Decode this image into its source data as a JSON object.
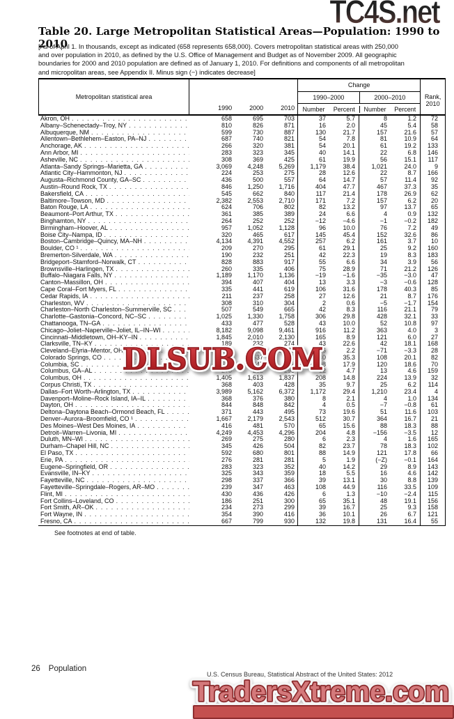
{
  "watermarks": {
    "top": "TC4S.net",
    "middle": "DLSUB.COM",
    "bottom": "TradersXtreme.com"
  },
  "title": "Table 20. Large Metropolitan Statistical Areas—Population: 1990 to 2010",
  "subtitle_lines": [
    "[As of April 1. In thousands, except as indicated (658 represents 658,000). Covers metropolitan statistical areas with 250,000",
    "and over population in 2010, as defined by the U.S. Office of Management and Budget as of November 2009. All geographic",
    "boundaries for 2000 and 2010 population are defined as of January 1, 2010. For definitions and components of all metropolitan",
    "and micropolitan areas, see Appendix II. Minus sign (−) indicates decrease]"
  ],
  "table": {
    "col_area": "Metropolitan statistical area",
    "col_years": [
      "1990",
      "2000",
      "2010"
    ],
    "change_label": "Change",
    "change_groups": [
      "1990–2000",
      "2000–2010"
    ],
    "subcols": [
      "Number",
      "Percent"
    ],
    "rank_line1": "Rank,",
    "rank_line2": "2010",
    "rows": [
      {
        "name": "Akron, OH",
        "v": [
          "658",
          "695",
          "703",
          "37",
          "5.7",
          "8",
          "1.2",
          "72"
        ]
      },
      {
        "name": "Albany–Schenectady–Troy, NY",
        "v": [
          "810",
          "826",
          "871",
          "16",
          "2.0",
          "45",
          "5.4",
          "58"
        ]
      },
      {
        "name": "Albuquerque, NM",
        "v": [
          "599",
          "730",
          "887",
          "130",
          "21.7",
          "157",
          "21.6",
          "57"
        ]
      },
      {
        "name": "Allentown–Bethlehem–Easton, PA–NJ",
        "v": [
          "687",
          "740",
          "821",
          "54",
          "7.8",
          "81",
          "10.9",
          "64"
        ]
      },
      {
        "name": "Anchorage, AK",
        "v": [
          "266",
          "320",
          "381",
          "54",
          "20.1",
          "61",
          "19.2",
          "133"
        ]
      },
      {
        "name": "Ann Arbor, MI",
        "v": [
          "283",
          "323",
          "345",
          "40",
          "14.1",
          "22",
          "6.8",
          "146"
        ]
      },
      {
        "name": "Asheville, NC",
        "v": [
          "308",
          "369",
          "425",
          "61",
          "19.9",
          "56",
          "15.1",
          "117"
        ]
      },
      {
        "name": "Atlanta–Sandy Springs–Marietta, GA",
        "v": [
          "3,069",
          "4,248",
          "5,269",
          "1,179",
          "38.4",
          "1,021",
          "24.0",
          "9"
        ]
      },
      {
        "name": "Atlantic City–Hammonton, NJ",
        "v": [
          "224",
          "253",
          "275",
          "28",
          "12.6",
          "22",
          "8.7",
          "166"
        ]
      },
      {
        "name": "Augusta–Richmond County, GA–SC",
        "v": [
          "436",
          "500",
          "557",
          "64",
          "14.7",
          "57",
          "11.4",
          "92"
        ]
      },
      {
        "name": "Austin–Round Rock, TX",
        "v": [
          "846",
          "1,250",
          "1,716",
          "404",
          "47.7",
          "467",
          "37.3",
          "35"
        ]
      },
      {
        "name": "Bakersfield, CA",
        "v": [
          "545",
          "662",
          "840",
          "117",
          "21.4",
          "178",
          "26.9",
          "62"
        ]
      },
      {
        "name": "Baltimore–Towson, MD",
        "v": [
          "2,382",
          "2,553",
          "2,710",
          "171",
          "7.2",
          "157",
          "6.2",
          "20"
        ]
      },
      {
        "name": "Baton Rouge, LA",
        "v": [
          "624",
          "706",
          "802",
          "82",
          "13.2",
          "97",
          "13.7",
          "65"
        ]
      },
      {
        "name": "Beaumont–Port Arthur, TX",
        "v": [
          "361",
          "385",
          "389",
          "24",
          "6.6",
          "4",
          "0.9",
          "132"
        ]
      },
      {
        "name": "Binghamton, NY",
        "v": [
          "264",
          "252",
          "252",
          "−12",
          "−4.6",
          "−1",
          "−0.2",
          "182"
        ]
      },
      {
        "name": "Birmingham–Hoover, AL",
        "v": [
          "957",
          "1,052",
          "1,128",
          "96",
          "10.0",
          "76",
          "7.2",
          "49"
        ]
      },
      {
        "name": "Boise City–Nampa, ID",
        "v": [
          "320",
          "465",
          "617",
          "145",
          "45.4",
          "152",
          "32.6",
          "86"
        ]
      },
      {
        "name": "Boston–Cambridge–Quincy, MA–NH",
        "v": [
          "4,134",
          "4,391",
          "4,552",
          "257",
          "6.2",
          "161",
          "3.7",
          "10"
        ]
      },
      {
        "name": "Boulder, CO ¹",
        "v": [
          "209",
          "270",
          "295",
          "61",
          "29.1",
          "25",
          "9.2",
          "160"
        ]
      },
      {
        "name": "Bremerton-Silverdale, WA",
        "v": [
          "190",
          "232",
          "251",
          "42",
          "22.3",
          "19",
          "8.3",
          "183"
        ]
      },
      {
        "name": "Bridgeport–Stamford–Norwalk, CT",
        "v": [
          "828",
          "883",
          "917",
          "55",
          "6.6",
          "34",
          "3.9",
          "56"
        ]
      },
      {
        "name": "Brownsville–Harlingen, TX",
        "v": [
          "260",
          "335",
          "406",
          "75",
          "28.9",
          "71",
          "21.2",
          "126"
        ]
      },
      {
        "name": "Buffalo–Niagara Falls, NY",
        "v": [
          "1,189",
          "1,170",
          "1,136",
          "−19",
          "−1.6",
          "−35",
          "−3.0",
          "47"
        ]
      },
      {
        "name": "Canton–Massillon, OH",
        "v": [
          "394",
          "407",
          "404",
          "13",
          "3.3",
          "−3",
          "−0.6",
          "128"
        ]
      },
      {
        "name": "Cape Coral–Fort Myers, FL",
        "v": [
          "335",
          "441",
          "619",
          "106",
          "31.6",
          "178",
          "40.3",
          "85"
        ]
      },
      {
        "name": "Cedar Rapids, IA",
        "v": [
          "211",
          "237",
          "258",
          "27",
          "12.6",
          "21",
          "8.7",
          "176"
        ]
      },
      {
        "name": "Charleston, WV",
        "v": [
          "308",
          "310",
          "304",
          "2",
          "0.6",
          "−5",
          "−1.7",
          "154"
        ]
      },
      {
        "name": "Charleston–North Charleston–Summerville, SC",
        "v": [
          "507",
          "549",
          "665",
          "42",
          "8.3",
          "116",
          "21.1",
          "79"
        ]
      },
      {
        "name": "Charlotte–Gastonia–Concord, NC–SC",
        "v": [
          "1,025",
          "1,330",
          "1,758",
          "306",
          "29.8",
          "428",
          "32.1",
          "33"
        ]
      },
      {
        "name": "Chattanooga, TN–GA",
        "v": [
          "433",
          "477",
          "528",
          "43",
          "10.0",
          "52",
          "10.8",
          "97"
        ]
      },
      {
        "name": "Chicago–Joliet–Naperville–Joliet, IL–IN–WI",
        "v": [
          "8,182",
          "9,098",
          "9,461",
          "916",
          "11.2",
          "363",
          "4.0",
          "3"
        ]
      },
      {
        "name": "Cincinnati–Middletown, OH–KY–IN",
        "v": [
          "1,845",
          "2,010",
          "2,130",
          "165",
          "8.9",
          "121",
          "6.0",
          "27"
        ]
      },
      {
        "name": "Clarksville, TN–KY",
        "v": [
          "189",
          "232",
          "274",
          "43",
          "22.6",
          "42",
          "18.1",
          "168"
        ]
      },
      {
        "name": "Cleveland–Elyria–Mentor, OH",
        "v": [
          "2,102",
          "2,148",
          "2,077",
          "46",
          "2.2",
          "−71",
          "−3.3",
          "28"
        ]
      },
      {
        "name": "Colorado Springs, CO",
        "v": [
          "397",
          "537",
          "645",
          "140",
          "35.3",
          "108",
          "20.1",
          "82"
        ]
      },
      {
        "name": "Columbia, SC",
        "v": [
          "549",
          "647",
          "767",
          "98",
          "17.9",
          "120",
          "18.6",
          "70"
        ]
      },
      {
        "name": "Columbus, GA–AL",
        "v": [
          "270",
          "282",
          "295",
          "12",
          "4.7",
          "13",
          "4.6",
          "159"
        ]
      },
      {
        "name": "Columbus, OH",
        "v": [
          "1,405",
          "1,613",
          "1,837",
          "208",
          "14.8",
          "224",
          "13.9",
          "32"
        ]
      },
      {
        "name": "Corpus Christi, TX",
        "v": [
          "368",
          "403",
          "428",
          "35",
          "9.7",
          "25",
          "6.2",
          "114"
        ]
      },
      {
        "name": "Dallas–Fort Worth–Arlington, TX",
        "v": [
          "3,989",
          "5,162",
          "6,372",
          "1,172",
          "29.4",
          "1,210",
          "23.4",
          "4"
        ]
      },
      {
        "name": "Davenport–Moline–Rock Island, IA–IL",
        "v": [
          "368",
          "376",
          "380",
          "8",
          "2.1",
          "4",
          "1.0",
          "134"
        ]
      },
      {
        "name": "Dayton, OH",
        "v": [
          "844",
          "848",
          "842",
          "4",
          "0.5",
          "−7",
          "−0.8",
          "61"
        ]
      },
      {
        "name": "Deltona–Daytona Beach–Ormond Beach, FL",
        "v": [
          "371",
          "443",
          "495",
          "73",
          "19.6",
          "51",
          "11.6",
          "103"
        ]
      },
      {
        "name": "Denver–Aurora–Broomfield, CO ¹",
        "v": [
          "1,667",
          "2,179",
          "2,543",
          "512",
          "30.7",
          "364",
          "16.7",
          "21"
        ]
      },
      {
        "name": "Des Moines–West Des Moines, IA",
        "v": [
          "416",
          "481",
          "570",
          "65",
          "15.6",
          "88",
          "18.3",
          "88"
        ]
      },
      {
        "name": "Detroit–Warren–Livonia, MI",
        "v": [
          "4,249",
          "4,453",
          "4,296",
          "204",
          "4.8",
          "−156",
          "−3.5",
          "12"
        ]
      },
      {
        "name": "Duluth, MN–WI",
        "v": [
          "269",
          "275",
          "280",
          "6",
          "2.3",
          "4",
          "1.6",
          "165"
        ]
      },
      {
        "name": "Durham–Chapel Hill, NC",
        "v": [
          "345",
          "426",
          "504",
          "82",
          "23.7",
          "78",
          "18.3",
          "102"
        ]
      },
      {
        "name": "El Paso, TX",
        "v": [
          "592",
          "680",
          "801",
          "88",
          "14.9",
          "121",
          "17.8",
          "66"
        ]
      },
      {
        "name": "Erie, PA",
        "v": [
          "276",
          "281",
          "281",
          "5",
          "1.9",
          "(−Z)",
          "−0.1",
          "164"
        ]
      },
      {
        "name": "Eugene–Springfield, OR",
        "v": [
          "283",
          "323",
          "352",
          "40",
          "14.2",
          "29",
          "8.9",
          "143"
        ]
      },
      {
        "name": "Evansville, IN–KY",
        "v": [
          "325",
          "343",
          "359",
          "18",
          "5.5",
          "16",
          "4.6",
          "142"
        ]
      },
      {
        "name": "Fayetteville, NC",
        "v": [
          "298",
          "337",
          "366",
          "39",
          "13.1",
          "30",
          "8.8",
          "139"
        ]
      },
      {
        "name": "Fayetteville–Springdale–Rogers, AR–MO",
        "v": [
          "239",
          "347",
          "463",
          "108",
          "44.9",
          "116",
          "33.5",
          "109"
        ]
      },
      {
        "name": "Flint, MI",
        "v": [
          "430",
          "436",
          "426",
          "6",
          "1.3",
          "−10",
          "−2.4",
          "115"
        ]
      },
      {
        "name": "Fort Collins–Loveland, CO",
        "v": [
          "186",
          "251",
          "300",
          "65",
          "35.1",
          "48",
          "19.1",
          "156"
        ]
      },
      {
        "name": "Fort Smith, AR–OK",
        "v": [
          "234",
          "273",
          "299",
          "39",
          "16.7",
          "25",
          "9.3",
          "158"
        ]
      },
      {
        "name": "Fort Wayne, IN",
        "v": [
          "354",
          "390",
          "416",
          "36",
          "10.1",
          "26",
          "6.7",
          "121"
        ]
      },
      {
        "name": "Fresno, CA",
        "v": [
          "667",
          "799",
          "930",
          "132",
          "19.8",
          "131",
          "16.4",
          "55"
        ]
      }
    ]
  },
  "footnote": "See footnotes at end of table.",
  "page_footer": {
    "page": "26",
    "section": "Population",
    "source": "U.S. Census Bureau, Statistical Abstract of the United States: 2012"
  },
  "colors": {
    "watermark_red": "#c2242a",
    "watermark_salmon": "#d4797b",
    "gradient_dark": "#232323",
    "gradient_rust": "#9b5a4c"
  }
}
